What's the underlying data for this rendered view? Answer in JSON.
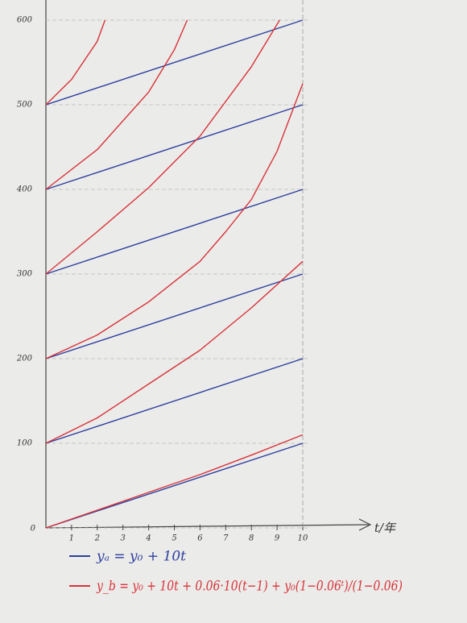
{
  "chart_data": {
    "type": "line",
    "x_label": "t/年",
    "xlim": [
      0,
      10
    ],
    "ylim": [
      0,
      600
    ],
    "xticks": [
      1,
      2,
      3,
      4,
      5,
      6,
      7,
      8,
      9,
      10
    ],
    "yticks": [
      0,
      100,
      200,
      300,
      400,
      500,
      600
    ],
    "grid": true,
    "series": [
      {
        "name": "yₐ = y₀ + 10t",
        "color": "#2e3f9e",
        "curves": [
          {
            "x": [
              0,
              10
            ],
            "y": [
              0,
              100
            ]
          },
          {
            "x": [
              0,
              10
            ],
            "y": [
              100,
              200
            ]
          },
          {
            "x": [
              0,
              10
            ],
            "y": [
              200,
              300
            ]
          },
          {
            "x": [
              0,
              10
            ],
            "y": [
              300,
              400
            ]
          },
          {
            "x": [
              0,
              10
            ],
            "y": [
              400,
              500
            ]
          },
          {
            "x": [
              0,
              10
            ],
            "y": [
              500,
              600
            ]
          }
        ]
      },
      {
        "name": "y_b = y₀ + 10t + 0.06·10(t−1) + y₀(1−0.06ᵗ)/(1−0.06)",
        "color": "#d8333a",
        "curves": [
          {
            "x": [
              0,
              2,
              4,
              6,
              8,
              10
            ],
            "y": [
              0,
              21,
              42,
              63,
              86,
              110
            ]
          },
          {
            "x": [
              0,
              2,
              4,
              6,
              8,
              10
            ],
            "y": [
              100,
              130,
              170,
              210,
              260,
              315
            ]
          },
          {
            "x": [
              0,
              2,
              4,
              6,
              7,
              8,
              9,
              10
            ],
            "y": [
              200,
              228,
              267,
              315,
              350,
              388,
              445,
              525
            ]
          },
          {
            "x": [
              0,
              2,
              4,
              6,
              8,
              9.1
            ],
            "y": [
              300,
              350,
              402,
              463,
              545,
              600
            ]
          },
          {
            "x": [
              0,
              2,
              4,
              5,
              5.5
            ],
            "y": [
              400,
              447,
              515,
              565,
              600
            ]
          },
          {
            "x": [
              0,
              1,
              2,
              2.3
            ],
            "y": [
              500,
              530,
              575,
              600
            ]
          }
        ]
      }
    ]
  }
}
